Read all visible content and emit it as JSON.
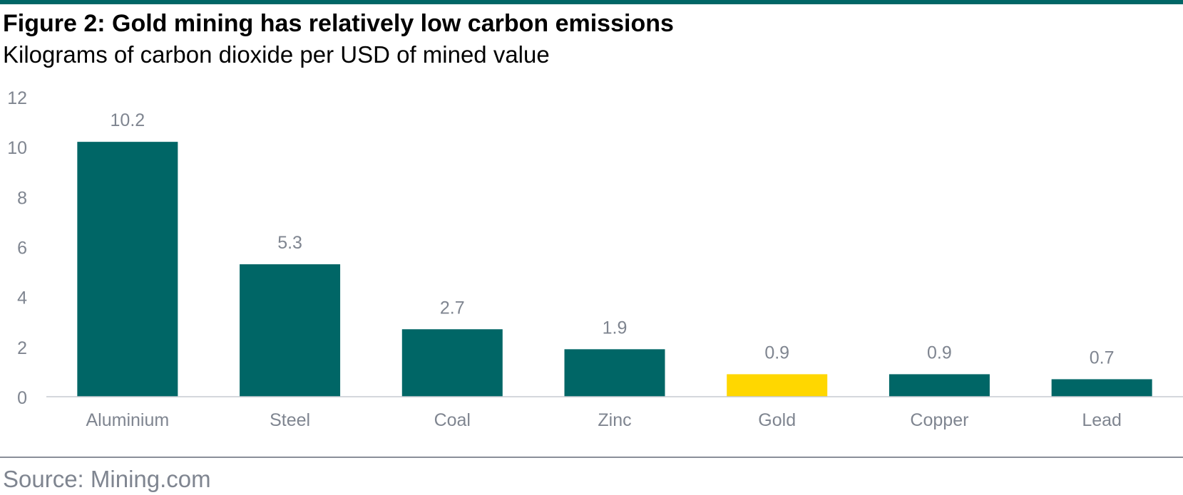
{
  "header": {
    "title": "Figure 2: Gold mining has relatively low carbon emissions",
    "subtitle": "Kilograms of carbon dioxide per USD of mined value"
  },
  "footer": {
    "source": "Source: Mining.com"
  },
  "colors": {
    "accent": "#006666",
    "highlight": "#FFD700",
    "axis_text": "#7f8590",
    "rule": "#8a8f99"
  },
  "chart_data": {
    "type": "bar",
    "categories": [
      "Aluminium",
      "Steel",
      "Coal",
      "Zinc",
      "Gold",
      "Copper",
      "Lead"
    ],
    "values": [
      10.2,
      5.3,
      2.7,
      1.9,
      0.9,
      0.9,
      0.7
    ],
    "data_labels": [
      "10.2",
      "5.3",
      "2.7",
      "1.9",
      "0.9",
      "0.9",
      "0.7"
    ],
    "highlight_category": "Gold",
    "title": "Figure 2: Gold mining has relatively low carbon emissions",
    "subtitle": "Kilograms of carbon dioxide per USD of mined value",
    "xlabel": "",
    "ylabel": "",
    "ylim": [
      0,
      12
    ],
    "yticks": [
      0,
      2,
      4,
      6,
      8,
      10,
      12
    ],
    "grid": false,
    "legend": "none"
  }
}
